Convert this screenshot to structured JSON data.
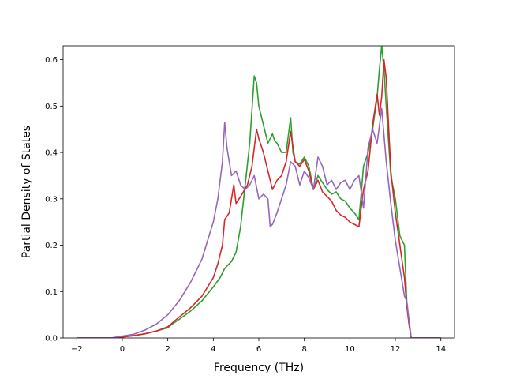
{
  "chart_data": {
    "type": "line",
    "title": "",
    "xlabel": "Frequency (THz)",
    "ylabel": "Partial Density of States",
    "xlim": [
      -2.6,
      14.6
    ],
    "ylim": [
      0.0,
      0.63
    ],
    "xticks": [
      -2,
      0,
      2,
      4,
      6,
      8,
      10,
      12,
      14
    ],
    "yticks": [
      0.0,
      0.1,
      0.2,
      0.3,
      0.4,
      0.5,
      0.6
    ],
    "xtick_labels": [
      "−2",
      "0",
      "2",
      "4",
      "6",
      "8",
      "10",
      "12",
      "14"
    ],
    "ytick_labels": [
      "0.0",
      "0.1",
      "0.2",
      "0.3",
      "0.4",
      "0.5",
      "0.6"
    ],
    "grid": false,
    "legend": "none",
    "series": [
      {
        "color": "#2ca02c",
        "x": [
          -2.0,
          -0.5,
          0.0,
          0.5,
          1.0,
          1.5,
          2.0,
          2.2,
          2.5,
          3.0,
          3.5,
          4.0,
          4.3,
          4.5,
          4.8,
          5.0,
          5.2,
          5.4,
          5.6,
          5.8,
          5.9,
          6.0,
          6.2,
          6.4,
          6.6,
          6.7,
          6.8,
          7.0,
          7.2,
          7.4,
          7.5,
          7.6,
          7.8,
          8.0,
          8.2,
          8.4,
          8.6,
          8.8,
          9.0,
          9.2,
          9.4,
          9.6,
          9.8,
          10.0,
          10.2,
          10.4,
          10.6,
          10.8,
          11.0,
          11.2,
          11.3,
          11.4,
          11.5,
          11.6,
          11.8,
          12.0,
          12.2,
          12.4,
          12.5,
          12.6,
          12.7,
          14.0
        ],
        "y": [
          0.0,
          0.0,
          0.002,
          0.005,
          0.009,
          0.015,
          0.022,
          0.03,
          0.04,
          0.058,
          0.08,
          0.11,
          0.13,
          0.15,
          0.165,
          0.185,
          0.24,
          0.33,
          0.42,
          0.565,
          0.55,
          0.5,
          0.46,
          0.42,
          0.44,
          0.425,
          0.42,
          0.4,
          0.4,
          0.475,
          0.4,
          0.38,
          0.375,
          0.39,
          0.37,
          0.32,
          0.35,
          0.335,
          0.32,
          0.31,
          0.315,
          0.3,
          0.295,
          0.28,
          0.27,
          0.255,
          0.37,
          0.4,
          0.45,
          0.52,
          0.58,
          0.63,
          0.58,
          0.5,
          0.35,
          0.3,
          0.22,
          0.2,
          0.08,
          0.03,
          0.0,
          0.0
        ]
      },
      {
        "color": "#d62728",
        "x": [
          -2.0,
          -0.5,
          0.0,
          0.5,
          1.0,
          1.5,
          2.0,
          2.5,
          3.0,
          3.5,
          4.0,
          4.2,
          4.4,
          4.5,
          4.7,
          4.9,
          5.0,
          5.2,
          5.5,
          5.7,
          5.9,
          6.0,
          6.2,
          6.4,
          6.6,
          6.8,
          7.0,
          7.2,
          7.4,
          7.6,
          7.8,
          8.0,
          8.2,
          8.4,
          8.6,
          8.8,
          9.0,
          9.2,
          9.4,
          9.6,
          9.8,
          10.0,
          10.2,
          10.4,
          10.6,
          10.8,
          11.0,
          11.2,
          11.3,
          11.4,
          11.5,
          11.6,
          11.8,
          12.0,
          12.2,
          12.4,
          12.5,
          12.6,
          12.7,
          14.0
        ],
        "y": [
          0.0,
          0.0,
          0.002,
          0.005,
          0.009,
          0.015,
          0.024,
          0.045,
          0.065,
          0.09,
          0.13,
          0.16,
          0.2,
          0.255,
          0.27,
          0.33,
          0.29,
          0.305,
          0.33,
          0.37,
          0.45,
          0.43,
          0.4,
          0.36,
          0.32,
          0.34,
          0.35,
          0.38,
          0.445,
          0.38,
          0.37,
          0.385,
          0.36,
          0.32,
          0.34,
          0.315,
          0.305,
          0.295,
          0.275,
          0.265,
          0.26,
          0.25,
          0.245,
          0.24,
          0.32,
          0.36,
          0.46,
          0.525,
          0.48,
          0.52,
          0.6,
          0.56,
          0.36,
          0.27,
          0.2,
          0.13,
          0.07,
          0.03,
          0.0,
          0.0
        ]
      },
      {
        "color": "#9467bd",
        "x": [
          -2.0,
          -0.5,
          0.0,
          0.5,
          1.0,
          1.5,
          2.0,
          2.5,
          3.0,
          3.5,
          4.0,
          4.2,
          4.4,
          4.5,
          4.6,
          4.8,
          5.0,
          5.2,
          5.4,
          5.6,
          5.8,
          6.0,
          6.2,
          6.4,
          6.5,
          6.6,
          6.8,
          7.0,
          7.2,
          7.4,
          7.6,
          7.8,
          8.0,
          8.2,
          8.4,
          8.6,
          8.8,
          9.0,
          9.2,
          9.4,
          9.6,
          9.8,
          10.0,
          10.2,
          10.4,
          10.6,
          10.8,
          11.0,
          11.2,
          11.4,
          11.6,
          11.8,
          12.0,
          12.2,
          12.4,
          12.5,
          12.6,
          12.7,
          14.0
        ],
        "y": [
          0.0,
          0.0,
          0.004,
          0.008,
          0.017,
          0.03,
          0.05,
          0.08,
          0.12,
          0.17,
          0.25,
          0.3,
          0.38,
          0.465,
          0.41,
          0.35,
          0.36,
          0.33,
          0.32,
          0.33,
          0.35,
          0.3,
          0.31,
          0.3,
          0.24,
          0.245,
          0.27,
          0.3,
          0.33,
          0.38,
          0.37,
          0.33,
          0.36,
          0.345,
          0.32,
          0.39,
          0.37,
          0.33,
          0.34,
          0.32,
          0.335,
          0.34,
          0.32,
          0.34,
          0.35,
          0.28,
          0.41,
          0.45,
          0.42,
          0.495,
          0.38,
          0.29,
          0.21,
          0.15,
          0.09,
          0.08,
          0.04,
          0.0,
          0.0
        ]
      }
    ]
  }
}
